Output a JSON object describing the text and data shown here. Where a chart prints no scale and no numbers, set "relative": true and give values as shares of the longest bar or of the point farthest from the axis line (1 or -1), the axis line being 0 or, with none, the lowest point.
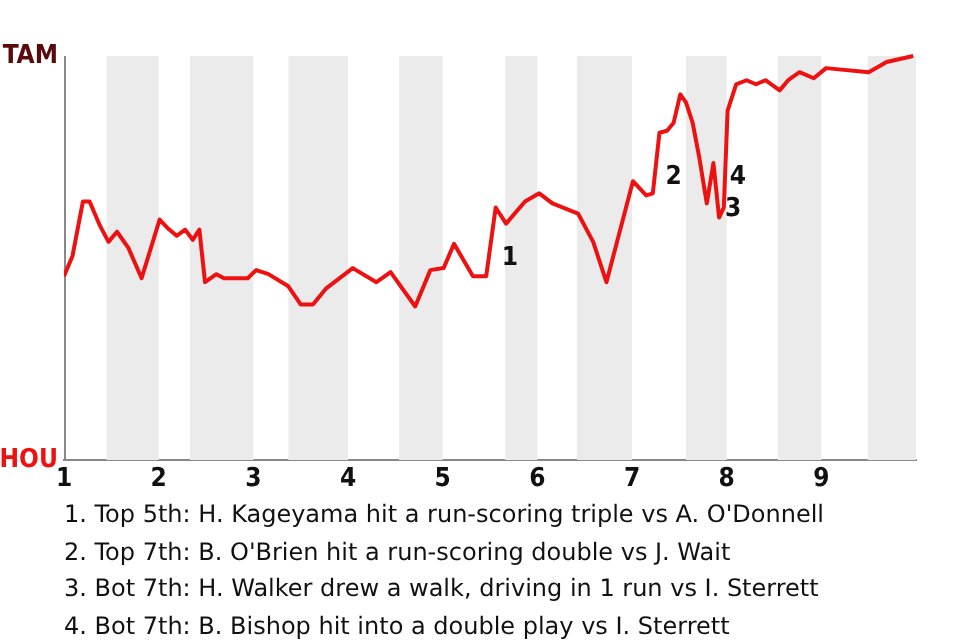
{
  "chart_data": {
    "type": "line",
    "relative": true,
    "x": [
      1.0,
      1.09,
      1.2,
      1.27,
      1.38,
      1.47,
      1.56,
      1.68,
      1.82,
      2.01,
      2.09,
      2.19,
      2.28,
      2.36,
      2.43,
      2.49,
      2.61,
      2.69,
      2.94,
      3.03,
      3.16,
      3.37,
      3.5,
      3.63,
      3.77,
      4.05,
      4.3,
      4.45,
      4.71,
      4.87,
      5.01,
      5.12,
      5.32,
      5.46,
      5.56,
      5.67,
      5.87,
      6.02,
      6.16,
      6.43,
      6.59,
      6.73,
      7.01,
      7.15,
      7.22,
      7.29,
      7.37,
      7.44,
      7.51,
      7.57,
      7.64,
      7.71,
      7.79,
      7.86,
      7.92,
      7.97,
      8.01,
      8.1,
      8.21,
      8.31,
      8.41,
      8.56,
      8.65,
      8.77,
      8.92,
      9.05,
      9.5,
      9.69,
      9.97
    ],
    "series": [
      {
        "color": "#ee1111",
        "values": [
          0.455,
          0.505,
          0.64,
          0.64,
          0.58,
          0.54,
          0.565,
          0.525,
          0.45,
          0.595,
          0.575,
          0.555,
          0.57,
          0.545,
          0.57,
          0.44,
          0.46,
          0.45,
          0.45,
          0.47,
          0.46,
          0.43,
          0.385,
          0.385,
          0.425,
          0.475,
          0.44,
          0.465,
          0.38,
          0.47,
          0.475,
          0.535,
          0.455,
          0.455,
          0.625,
          0.585,
          0.64,
          0.66,
          0.635,
          0.61,
          0.54,
          0.44,
          0.69,
          0.655,
          0.66,
          0.81,
          0.815,
          0.835,
          0.905,
          0.885,
          0.835,
          0.75,
          0.635,
          0.735,
          0.6,
          0.625,
          0.865,
          0.93,
          0.94,
          0.93,
          0.94,
          0.915,
          0.94,
          0.96,
          0.945,
          0.97,
          0.96,
          0.985,
          1
        ]
      }
    ],
    "xlim": [
      1,
      10
    ],
    "xticks": [
      1,
      2,
      3,
      4,
      5,
      6,
      7,
      8,
      9
    ],
    "legend": false,
    "marker": "none",
    "line_style": "solid",
    "bands": [
      {
        "axis": "x",
        "from": 1.45,
        "to": 2,
        "color": "#ebebeb"
      },
      {
        "axis": "x",
        "from": 2.33,
        "to": 3,
        "color": "#ebebeb"
      },
      {
        "axis": "x",
        "from": 3.37,
        "to": 4,
        "color": "#ebebeb"
      },
      {
        "axis": "x",
        "from": 4.54,
        "to": 5,
        "color": "#ebebeb"
      },
      {
        "axis": "x",
        "from": 5.66,
        "to": 6,
        "color": "#ebebeb"
      },
      {
        "axis": "x",
        "from": 6.42,
        "to": 7,
        "color": "#ebebeb"
      },
      {
        "axis": "x",
        "from": 7.57,
        "to": 8,
        "color": "#ebebeb"
      },
      {
        "axis": "x",
        "from": 8.54,
        "to": 9,
        "color": "#ebebeb"
      },
      {
        "axis": "x",
        "from": 9.49,
        "to": 10,
        "color": "#ebebeb"
      }
    ],
    "annotations": [
      "TAM",
      "HOU",
      {
        "text": "1",
        "x": 5.56,
        "y": 0.5
      },
      {
        "text": "2",
        "x": 7.29,
        "y": 0.7
      },
      {
        "text": "3",
        "x": 7.92,
        "y": 0.62
      },
      {
        "text": "4",
        "x": 7.97,
        "y": 0.7
      },
      "1. Top 5th: H. Kageyama hit a run-scoring triple vs A. O'Donnell",
      "2. Top 7th: B. O'Brien hit a run-scoring double vs J. Wait",
      "3. Bot 7th: H. Walker drew a walk, driving in 1 run vs I. Sterrett",
      "4. Bot 7th: B. Bishop hit into a double play vs I. Sterrett"
    ]
  }
}
